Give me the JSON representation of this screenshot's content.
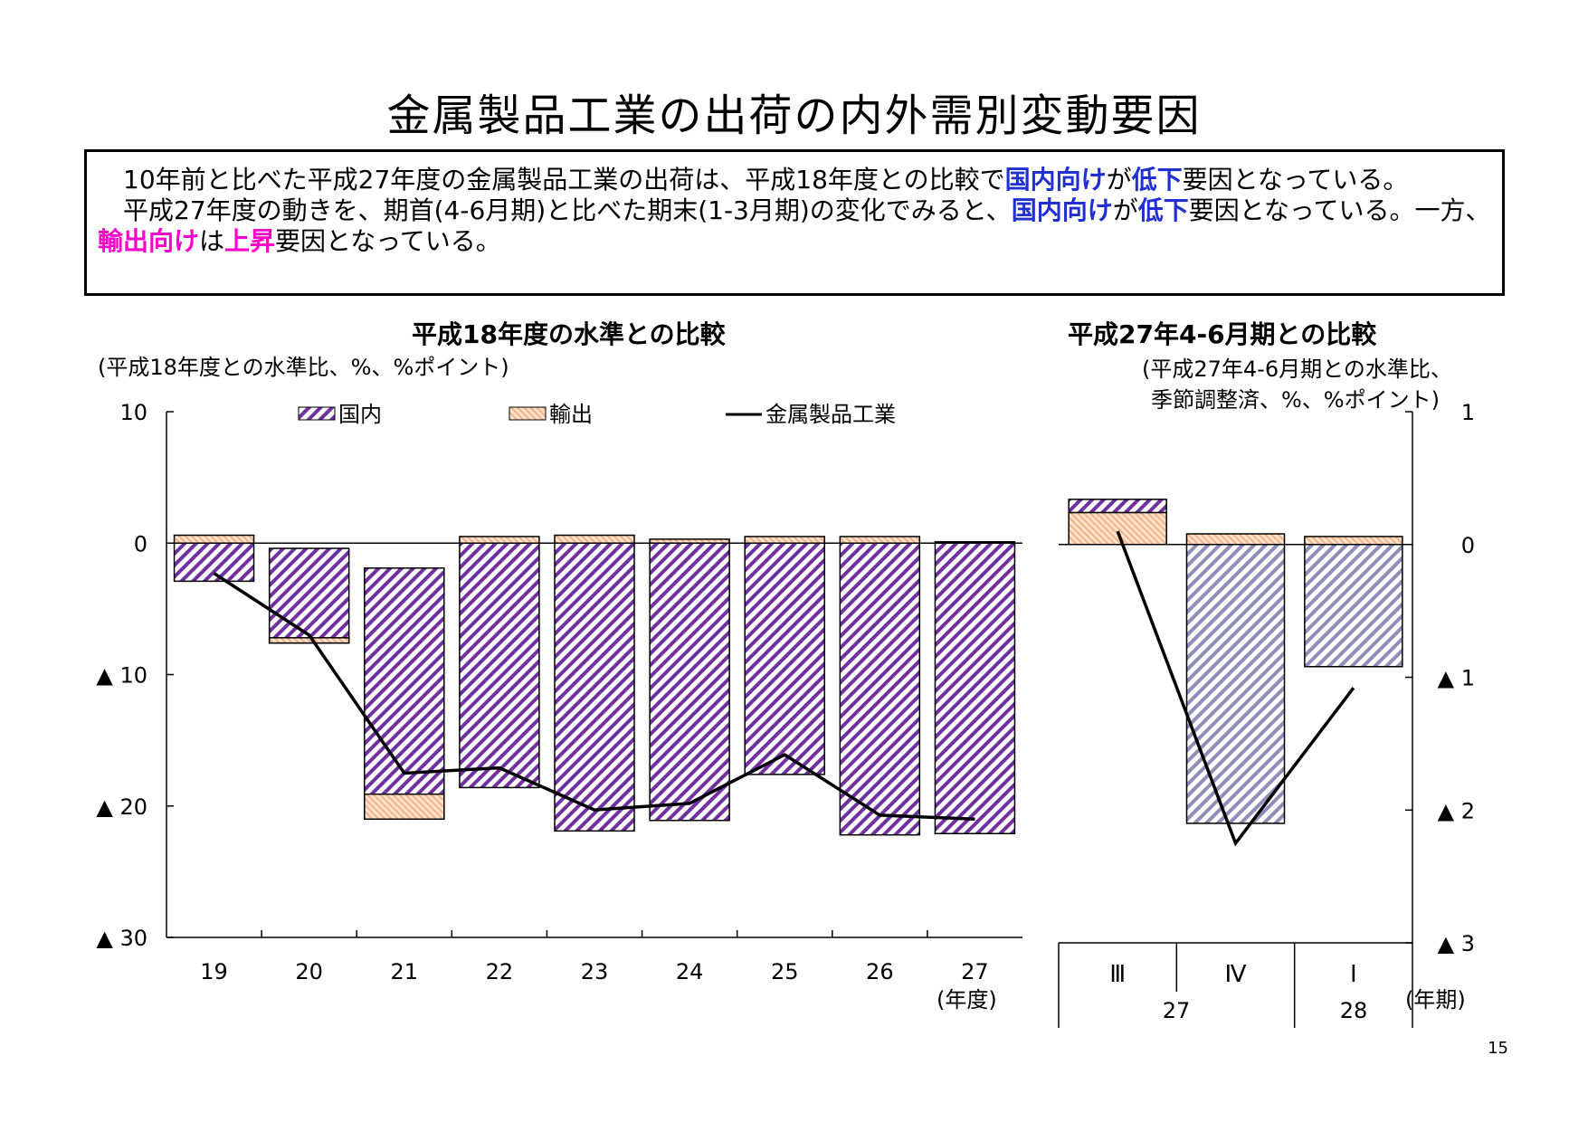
{
  "title": "金属製品工業の出荷の内外需別変動要因",
  "summary": {
    "p1": [
      {
        "t": "10年前と比べた平成27年度の金属製品工業の出荷は、平成18年度との比較で",
        "c": ""
      },
      {
        "t": "国内向け",
        "c": "kw-blue"
      },
      {
        "t": "が",
        "c": ""
      },
      {
        "t": "低下",
        "c": "kw-blue"
      },
      {
        "t": "要因となっている。",
        "c": ""
      }
    ],
    "p2": [
      {
        "t": "平成27年度の動きを、期首(4-6月期)と比べた期末(1-3月期)の変化でみると、",
        "c": ""
      },
      {
        "t": "国内向け",
        "c": "kw-blue"
      },
      {
        "t": "が",
        "c": ""
      },
      {
        "t": "低下",
        "c": "kw-blue"
      },
      {
        "t": "要因となっている。一方、",
        "c": ""
      },
      {
        "t": "輸出向け",
        "c": "kw-pink"
      },
      {
        "t": "は",
        "c": ""
      },
      {
        "t": "上昇",
        "c": "kw-pink"
      },
      {
        "t": "要因となっている。",
        "c": ""
      }
    ]
  },
  "page_number": "15",
  "colors": {
    "domestic": "#7030a0",
    "domestic_right": "#8e8eb8",
    "export": "#f4b183",
    "line": "#000000"
  },
  "chart_data": [
    {
      "type": "bar",
      "stacked": true,
      "title": "平成18年度の水準との比較",
      "unit_note": "(平成18年度との水準比、%、%ポイント)",
      "x_unit": "(年度)",
      "categories": [
        "19",
        "20",
        "21",
        "22",
        "23",
        "24",
        "25",
        "26",
        "27"
      ],
      "ylim": [
        -30,
        10
      ],
      "yticks": [
        {
          "v": 10,
          "label": "10"
        },
        {
          "v": 0,
          "label": "0"
        },
        {
          "v": -10,
          "label": "▲ 10"
        },
        {
          "v": -20,
          "label": "▲ 20"
        },
        {
          "v": -30,
          "label": "▲ 30"
        }
      ],
      "legend": [
        "国内",
        "輸出",
        "金属製品工業"
      ],
      "legend_position": "top",
      "series": [
        {
          "name": "国内",
          "kind": "bar",
          "values": [
            -2.9,
            -7.2,
            -19.1,
            -18.6,
            -21.9,
            -21.1,
            -17.6,
            -22.2,
            -22.1
          ]
        },
        {
          "name": "輸出",
          "kind": "bar",
          "values": [
            0.6,
            -0.4,
            -1.9,
            0.5,
            0.6,
            0.3,
            0.5,
            0.5,
            0.1
          ]
        },
        {
          "name": "金属製品工業",
          "kind": "line",
          "values": [
            -2.3,
            -7.0,
            -17.5,
            -17.1,
            -20.3,
            -19.8,
            -16.1,
            -20.7,
            -21.0
          ]
        }
      ]
    },
    {
      "type": "bar",
      "stacked": true,
      "title": "平成27年4-6月期との比較",
      "unit_note_1": "(平成27年4-6月期との水準比、",
      "unit_note_2": "季節調整済、%、%ポイント)",
      "x_unit": "(年期)",
      "categories": [
        "Ⅲ",
        "Ⅳ",
        "Ⅰ"
      ],
      "year_labels": [
        "27",
        "28"
      ],
      "ylim": [
        -3,
        1
      ],
      "yticks": [
        {
          "v": 1,
          "label": "1"
        },
        {
          "v": 0,
          "label": "0"
        },
        {
          "v": -1,
          "label": "▲ 1"
        },
        {
          "v": -2,
          "label": "▲ 2"
        },
        {
          "v": -3,
          "label": "▲ 3"
        }
      ],
      "series": [
        {
          "name": "国内",
          "kind": "bar",
          "values": [
            0.1,
            -2.1,
            -0.92
          ]
        },
        {
          "name": "輸出",
          "kind": "bar",
          "values": [
            0.24,
            0.08,
            0.06
          ]
        },
        {
          "name": "金属製品工業",
          "kind": "line",
          "values": [
            0.1,
            -2.25,
            -1.08
          ]
        }
      ]
    }
  ]
}
